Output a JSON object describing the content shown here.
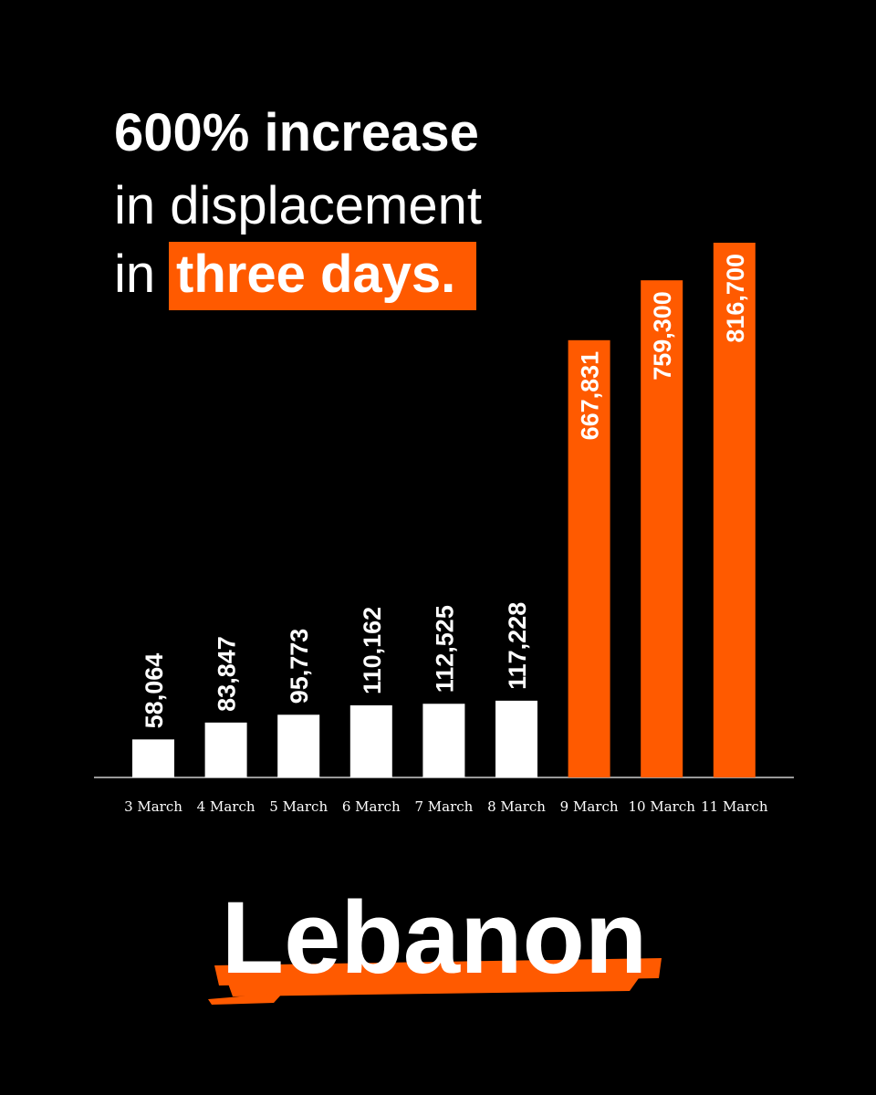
{
  "chart_data": {
    "type": "bar",
    "title_lines": [
      "600% increase",
      "in displacement",
      "in",
      "three days."
    ],
    "footer": "Lebanon",
    "categories": [
      "3 March",
      "4 March",
      "5 March",
      "6 March",
      "7 March",
      "8 March",
      "9 March",
      "10 March",
      "11 March"
    ],
    "values": [
      58064,
      83847,
      95773,
      110162,
      112525,
      117228,
      667831,
      759300,
      816700
    ],
    "value_labels": [
      "58,064",
      "83,847",
      "95,773",
      "110,162",
      "112,525",
      "117,228",
      "667,831",
      "759,300",
      "816,700"
    ],
    "colors": [
      "#ffffff",
      "#ffffff",
      "#ffffff",
      "#ffffff",
      "#ffffff",
      "#ffffff",
      "#ff5a00",
      "#ff5a00",
      "#ff5a00"
    ],
    "highlight_color": "#ff5a00"
  }
}
